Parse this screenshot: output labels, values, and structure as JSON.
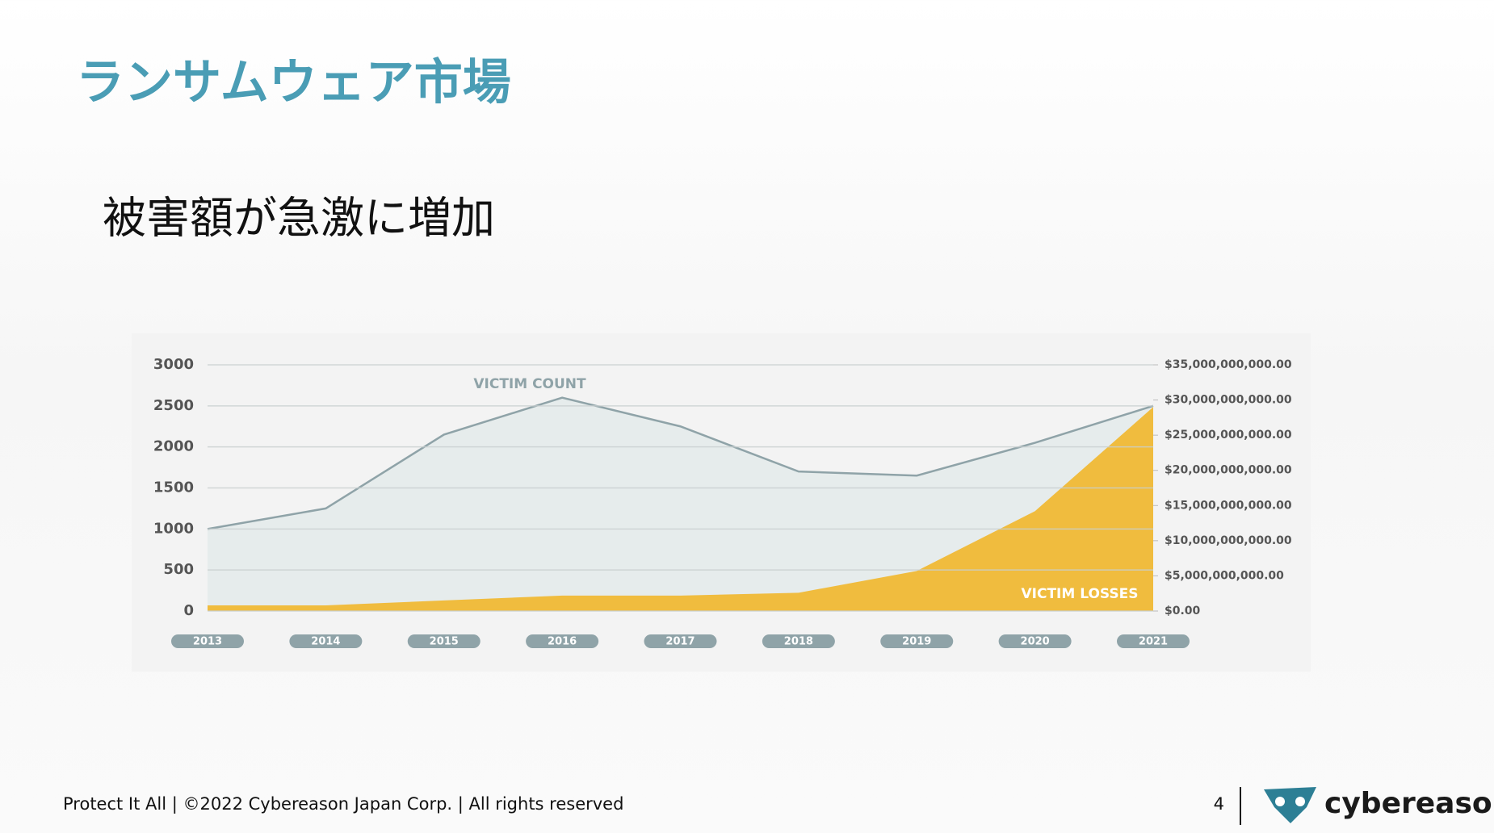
{
  "title": "ランサムウェア市場",
  "subtitle": "被害額が急激に増加",
  "footer": "Protect It All | ©2022 Cybereason Japan Corp. | All rights reserved",
  "page_number": "4",
  "logo": "cybereason",
  "chart_data": {
    "type": "area",
    "categories": [
      "2013",
      "2014",
      "2015",
      "2016",
      "2017",
      "2018",
      "2019",
      "2020",
      "2021"
    ],
    "series": [
      {
        "name": "VICTIM COUNT",
        "color": "#8fa3a8",
        "values": [
          1000,
          1250,
          2150,
          2600,
          2250,
          1700,
          1650,
          2050,
          2500
        ]
      },
      {
        "name": "VICTIM LOSSES",
        "color": "#f0bc3e",
        "axis": "y2",
        "values": [
          800000000,
          800000000,
          1500000000,
          2200000000,
          2200000000,
          2600000000,
          5700000000,
          14200000000,
          29000000000
        ]
      }
    ],
    "ylim": [
      0,
      3000
    ],
    "yticks": [
      0,
      500,
      1000,
      1500,
      2000,
      2500,
      3000
    ],
    "y2lim": [
      0,
      35000000000
    ],
    "y2ticks": [
      {
        "value": 0,
        "label": "$0.00"
      },
      {
        "value": 5000000000,
        "label": "$5,000,000,000.00"
      },
      {
        "value": 10000000000,
        "label": "$10,000,000,000.00"
      },
      {
        "value": 15000000000,
        "label": "$15,000,000,000.00"
      },
      {
        "value": 20000000000,
        "label": "$20,000,000,000.00"
      },
      {
        "value": 25000000000,
        "label": "$25,000,000,000.00"
      },
      {
        "value": 30000000000,
        "label": "$30,000,000,000.00"
      },
      {
        "value": 35000000000,
        "label": "$35,000,000,000.00"
      }
    ],
    "grid": true
  }
}
